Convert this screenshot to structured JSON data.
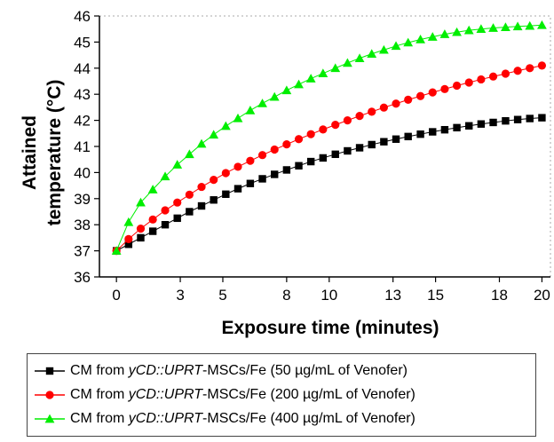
{
  "chart_data": {
    "type": "line",
    "xlabel": "Exposure time (minutes)",
    "ylabel_line1": "Attained",
    "ylabel_line2": "temperature (°C)",
    "xlim": [
      -0.8,
      20.4
    ],
    "ylim": [
      36,
      46
    ],
    "x_ticks": [
      0,
      3,
      5,
      8,
      10,
      13,
      15,
      18,
      20
    ],
    "x_tick_labels": [
      "0",
      "3",
      "5",
      "8",
      "10",
      "13",
      "15",
      "18",
      "20"
    ],
    "y_ticks": [
      36,
      37,
      38,
      39,
      40,
      41,
      42,
      43,
      44,
      45,
      46
    ],
    "y_tick_labels": [
      "36",
      "37",
      "38",
      "39",
      "40",
      "41",
      "42",
      "43",
      "44",
      "45",
      "46"
    ],
    "grid": false,
    "x": [
      0,
      0.57,
      1.14,
      1.71,
      2.29,
      2.86,
      3.43,
      4.0,
      4.57,
      5.14,
      5.71,
      6.29,
      6.86,
      7.43,
      8.0,
      8.57,
      9.14,
      9.71,
      10.29,
      10.86,
      11.43,
      12.0,
      12.57,
      13.14,
      13.71,
      14.29,
      14.86,
      15.43,
      16.0,
      16.57,
      17.14,
      17.71,
      18.29,
      18.86,
      19.43,
      20.0
    ],
    "series": [
      {
        "name_prefix": "CM from ",
        "name_italic": "yCD::UPRT",
        "name_suffix": "-MSCs/Fe (50 µg/mL of Venofer)",
        "marker": "square",
        "color": "#000000",
        "values": [
          37.0,
          37.25,
          37.5,
          37.75,
          38.0,
          38.25,
          38.5,
          38.72,
          38.95,
          39.17,
          39.38,
          39.58,
          39.76,
          39.93,
          40.1,
          40.26,
          40.42,
          40.56,
          40.7,
          40.83,
          40.95,
          41.07,
          41.18,
          41.28,
          41.38,
          41.47,
          41.56,
          41.64,
          41.72,
          41.79,
          41.86,
          41.92,
          41.98,
          42.03,
          42.07,
          42.1
        ]
      },
      {
        "name_prefix": "CM from ",
        "name_italic": "yCD::UPRT",
        "name_suffix": "-MSCs/Fe (200 µg/mL of Venofer)",
        "marker": "circle",
        "color": "#ff0000",
        "values": [
          37.0,
          37.45,
          37.85,
          38.2,
          38.55,
          38.85,
          39.15,
          39.45,
          39.72,
          39.98,
          40.22,
          40.45,
          40.67,
          40.88,
          41.08,
          41.28,
          41.47,
          41.65,
          41.83,
          42.0,
          42.17,
          42.33,
          42.49,
          42.64,
          42.79,
          42.93,
          43.07,
          43.2,
          43.33,
          43.45,
          43.57,
          43.68,
          43.79,
          43.9,
          44.0,
          44.1
        ]
      },
      {
        "name_prefix": "CM from ",
        "name_italic": "yCD::UPRT",
        "name_suffix": "-MSCs/Fe (400 µg/mL of Venofer)",
        "marker": "triangle",
        "color": "#00ee00",
        "values": [
          37.0,
          38.1,
          38.85,
          39.35,
          39.85,
          40.3,
          40.7,
          41.1,
          41.45,
          41.78,
          42.08,
          42.38,
          42.65,
          42.9,
          43.15,
          43.38,
          43.6,
          43.8,
          44.0,
          44.2,
          44.38,
          44.55,
          44.7,
          44.85,
          44.98,
          45.1,
          45.2,
          45.3,
          45.38,
          45.45,
          45.5,
          45.54,
          45.57,
          45.6,
          45.62,
          45.65
        ]
      }
    ],
    "legend_placement": "bottom"
  }
}
